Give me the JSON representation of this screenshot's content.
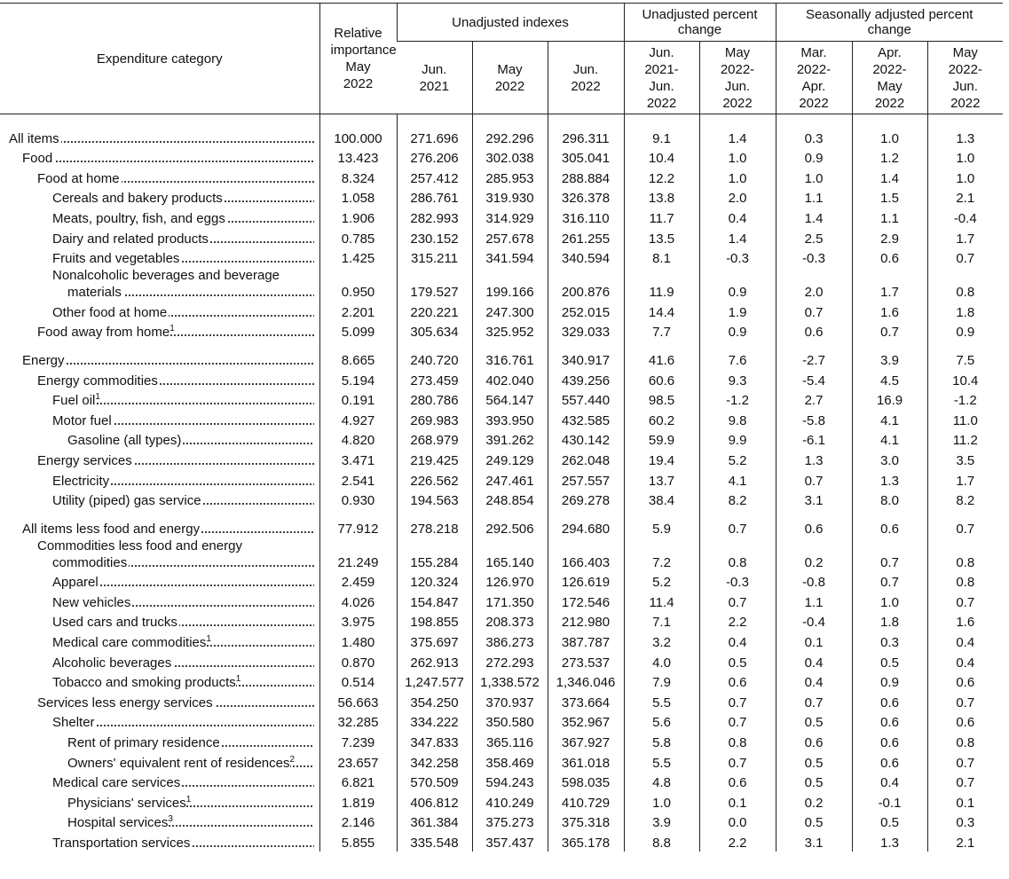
{
  "header": {
    "category": "Expenditure category",
    "relative_importance": "Relative importance May 2022",
    "groups": [
      "Unadjusted indexes",
      "Unadjusted percent change",
      "Seasonally adjusted percent change"
    ],
    "periods": [
      "Jun. 2021",
      "May 2022",
      "Jun. 2022",
      "Jun. 2021-Jun. 2022",
      "May 2022-Jun. 2022",
      "Mar. 2022-Apr. 2022",
      "Apr. 2022-May 2022",
      "May 2022-Jun. 2022"
    ]
  },
  "rows": [
    {
      "category": "All items",
      "values": [
        "100.000",
        "271.696",
        "292.296",
        "296.311",
        "9.1",
        "1.4",
        "0.3",
        "1.0",
        "1.3"
      ]
    },
    {
      "category": "Food",
      "values": [
        "13.423",
        "276.206",
        "302.038",
        "305.041",
        "10.4",
        "1.0",
        "0.9",
        "1.2",
        "1.0"
      ]
    },
    {
      "category": "Food at home",
      "values": [
        "8.324",
        "257.412",
        "285.953",
        "288.884",
        "12.2",
        "1.0",
        "1.0",
        "1.4",
        "1.0"
      ]
    },
    {
      "category": "Cereals and bakery products",
      "values": [
        "1.058",
        "286.761",
        "319.930",
        "326.378",
        "13.8",
        "2.0",
        "1.1",
        "1.5",
        "2.1"
      ]
    },
    {
      "category": "Meats, poultry, fish, and eggs",
      "values": [
        "1.906",
        "282.993",
        "314.929",
        "316.110",
        "11.7",
        "0.4",
        "1.4",
        "1.1",
        "-0.4"
      ]
    },
    {
      "category": "Dairy and related products",
      "values": [
        "0.785",
        "230.152",
        "257.678",
        "261.255",
        "13.5",
        "1.4",
        "2.5",
        "2.9",
        "1.7"
      ]
    },
    {
      "category": "Fruits and vegetables",
      "values": [
        "1.425",
        "315.211",
        "341.594",
        "340.594",
        "8.1",
        "-0.3",
        "-0.3",
        "0.6",
        "0.7"
      ]
    },
    {
      "category": "Nonalcoholic beverages and beverage materials",
      "values": [
        "0.950",
        "179.527",
        "199.166",
        "200.876",
        "11.9",
        "0.9",
        "2.0",
        "1.7",
        "0.8"
      ]
    },
    {
      "category": "Other food at home",
      "values": [
        "2.201",
        "220.221",
        "247.300",
        "252.015",
        "14.4",
        "1.9",
        "0.7",
        "1.6",
        "1.8"
      ]
    },
    {
      "category": "Food away from home",
      "note": "1",
      "values": [
        "5.099",
        "305.634",
        "325.952",
        "329.033",
        "7.7",
        "0.9",
        "0.6",
        "0.7",
        "0.9"
      ]
    },
    {
      "category": "Energy",
      "values": [
        "8.665",
        "240.720",
        "316.761",
        "340.917",
        "41.6",
        "7.6",
        "-2.7",
        "3.9",
        "7.5"
      ]
    },
    {
      "category": "Energy commodities",
      "values": [
        "5.194",
        "273.459",
        "402.040",
        "439.256",
        "60.6",
        "9.3",
        "-5.4",
        "4.5",
        "10.4"
      ]
    },
    {
      "category": "Fuel oil",
      "note": "1",
      "values": [
        "0.191",
        "280.786",
        "564.147",
        "557.440",
        "98.5",
        "-1.2",
        "2.7",
        "16.9",
        "-1.2"
      ]
    },
    {
      "category": "Motor fuel",
      "values": [
        "4.927",
        "269.983",
        "393.950",
        "432.585",
        "60.2",
        "9.8",
        "-5.8",
        "4.1",
        "11.0"
      ]
    },
    {
      "category": "Gasoline (all types)",
      "values": [
        "4.820",
        "268.979",
        "391.262",
        "430.142",
        "59.9",
        "9.9",
        "-6.1",
        "4.1",
        "11.2"
      ]
    },
    {
      "category": "Energy services",
      "values": [
        "3.471",
        "219.425",
        "249.129",
        "262.048",
        "19.4",
        "5.2",
        "1.3",
        "3.0",
        "3.5"
      ]
    },
    {
      "category": "Electricity",
      "values": [
        "2.541",
        "226.562",
        "247.461",
        "257.557",
        "13.7",
        "4.1",
        "0.7",
        "1.3",
        "1.7"
      ]
    },
    {
      "category": "Utility (piped) gas service",
      "values": [
        "0.930",
        "194.563",
        "248.854",
        "269.278",
        "38.4",
        "8.2",
        "3.1",
        "8.0",
        "8.2"
      ]
    },
    {
      "category": "All items less food and energy",
      "values": [
        "77.912",
        "278.218",
        "292.506",
        "294.680",
        "5.9",
        "0.7",
        "0.6",
        "0.6",
        "0.7"
      ]
    },
    {
      "category": "Commodities less food and energy commodities",
      "values": [
        "21.249",
        "155.284",
        "165.140",
        "166.403",
        "7.2",
        "0.8",
        "0.2",
        "0.7",
        "0.8"
      ]
    },
    {
      "category": "Apparel",
      "values": [
        "2.459",
        "120.324",
        "126.970",
        "126.619",
        "5.2",
        "-0.3",
        "-0.8",
        "0.7",
        "0.8"
      ]
    },
    {
      "category": "New vehicles",
      "values": [
        "4.026",
        "154.847",
        "171.350",
        "172.546",
        "11.4",
        "0.7",
        "1.1",
        "1.0",
        "0.7"
      ]
    },
    {
      "category": "Used cars and trucks",
      "values": [
        "3.975",
        "198.855",
        "208.373",
        "212.980",
        "7.1",
        "2.2",
        "-0.4",
        "1.8",
        "1.6"
      ]
    },
    {
      "category": "Medical care commodities",
      "note": "1",
      "values": [
        "1.480",
        "375.697",
        "386.273",
        "387.787",
        "3.2",
        "0.4",
        "0.1",
        "0.3",
        "0.4"
      ]
    },
    {
      "category": "Alcoholic beverages",
      "values": [
        "0.870",
        "262.913",
        "272.293",
        "273.537",
        "4.0",
        "0.5",
        "0.4",
        "0.5",
        "0.4"
      ]
    },
    {
      "category": "Tobacco and smoking products",
      "note": "1",
      "values": [
        "0.514",
        "1,247.577",
        "1,338.572",
        "1,346.046",
        "7.9",
        "0.6",
        "0.4",
        "0.9",
        "0.6"
      ]
    },
    {
      "category": "Services less energy services",
      "values": [
        "56.663",
        "354.250",
        "370.937",
        "373.664",
        "5.5",
        "0.7",
        "0.7",
        "0.6",
        "0.7"
      ]
    },
    {
      "category": "Shelter",
      "values": [
        "32.285",
        "334.222",
        "350.580",
        "352.967",
        "5.6",
        "0.7",
        "0.5",
        "0.6",
        "0.6"
      ]
    },
    {
      "category": "Rent of primary residence",
      "values": [
        "7.239",
        "347.833",
        "365.116",
        "367.927",
        "5.8",
        "0.8",
        "0.6",
        "0.6",
        "0.8"
      ]
    },
    {
      "category": "Owners' equivalent rent of residences",
      "note": "2",
      "values": [
        "23.657",
        "342.258",
        "358.469",
        "361.018",
        "5.5",
        "0.7",
        "0.5",
        "0.6",
        "0.7"
      ]
    },
    {
      "category": "Medical care services",
      "values": [
        "6.821",
        "570.509",
        "594.243",
        "598.035",
        "4.8",
        "0.6",
        "0.5",
        "0.4",
        "0.7"
      ]
    },
    {
      "category": "Physicians' services",
      "note": "1",
      "values": [
        "1.819",
        "406.812",
        "410.249",
        "410.729",
        "1.0",
        "0.1",
        "0.2",
        "-0.1",
        "0.1"
      ]
    },
    {
      "category": "Hospital services",
      "note": "3",
      "values": [
        "2.146",
        "361.384",
        "375.273",
        "375.318",
        "3.9",
        "0.0",
        "0.5",
        "0.5",
        "0.3"
      ]
    },
    {
      "category": "Transportation services",
      "values": [
        "5.855",
        "335.548",
        "357.437",
        "365.178",
        "8.8",
        "2.2",
        "3.1",
        "1.3",
        "2.1"
      ]
    }
  ]
}
